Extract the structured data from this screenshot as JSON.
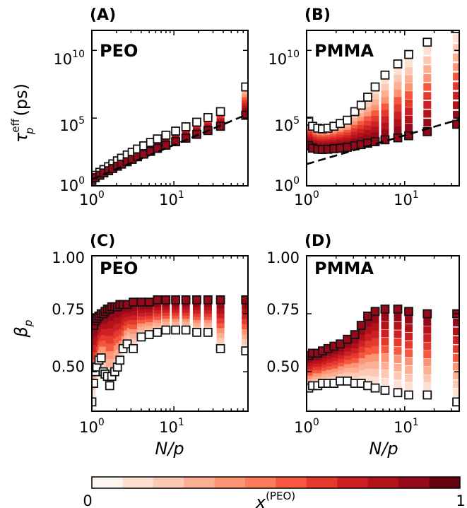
{
  "chart_data": [
    {
      "panel": "A",
      "material": "PEO",
      "type": "scatter",
      "xlabel": "",
      "ylabel": "τ_p^eff (ps)",
      "ylabel_symbol": "τ",
      "ylabel_sub": "p",
      "ylabel_sup": "eff",
      "ylabel_unit": "(ps)",
      "xscale": "log",
      "yscale": "log",
      "xlim": [
        1,
        80
      ],
      "ylim": [
        1,
        300000000000
      ],
      "xticks": [
        {
          "value": 1,
          "base": "10",
          "exp": "0"
        },
        {
          "value": 10,
          "base": "10",
          "exp": "1"
        }
      ],
      "yticks": [
        {
          "value": 1,
          "base": "10",
          "exp": "0"
        },
        {
          "value": 100000,
          "base": "10",
          "exp": "5"
        },
        {
          "value": 10000000000,
          "base": "10",
          "exp": "10"
        }
      ],
      "series": [
        {
          "name": "x(PEO)=0",
          "x_peo": 0,
          "x": [
            1.0,
            1.1,
            1.25,
            1.4,
            1.6,
            1.8,
            2.05,
            2.3,
            2.7,
            3.1,
            3.6,
            4.3,
            5.2,
            6.3,
            8,
            10.5,
            14,
            19,
            26,
            37,
            75
          ],
          "y": [
            3,
            6,
            10,
            16,
            26,
            42,
            70,
            110,
            190,
            300,
            520,
            900,
            1600,
            2900,
            5500,
            11000,
            23000,
            50000,
            110000,
            300000,
            20000000
          ]
        },
        {
          "name": "x(PEO)=1",
          "x_peo": 1,
          "x": [
            1.0,
            1.1,
            1.25,
            1.4,
            1.6,
            1.8,
            2.05,
            2.3,
            2.7,
            3.1,
            3.6,
            4.3,
            5.2,
            6.3,
            8,
            10.5,
            14,
            19,
            26,
            37,
            75
          ],
          "y": [
            2.5,
            4,
            6,
            9,
            13,
            19,
            28,
            40,
            60,
            90,
            140,
            220,
            350,
            580,
            1000,
            1800,
            3300,
            6300,
            12000,
            25000,
            160000
          ]
        }
      ],
      "reference_line": {
        "style": "dashed",
        "x": [
          1,
          80
        ],
        "y": [
          3,
          200000
        ]
      }
    },
    {
      "panel": "B",
      "material": "PMMA",
      "type": "scatter",
      "xlabel": "",
      "ylabel": "",
      "xscale": "log",
      "yscale": "log",
      "xlim": [
        1,
        36
      ],
      "ylim": [
        1,
        300000000000
      ],
      "xticks": [
        {
          "value": 1,
          "base": "10",
          "exp": "0"
        },
        {
          "value": 10,
          "base": "10",
          "exp": "1"
        }
      ],
      "yticks": [
        {
          "value": 1,
          "base": "10",
          "exp": "0"
        },
        {
          "value": 100000,
          "base": "10",
          "exp": "5"
        },
        {
          "value": 10000000000,
          "base": "10",
          "exp": "10"
        }
      ],
      "series": [
        {
          "name": "x(PEO)=0",
          "x_peo": 0,
          "x": [
            1.05,
            1.15,
            1.3,
            1.45,
            1.65,
            1.9,
            2.2,
            2.6,
            3.1,
            3.6,
            4.2,
            5,
            6.3,
            8.5,
            11,
            17,
            34
          ],
          "y": [
            60000,
            25000,
            18000,
            16000,
            18000,
            25000,
            40000,
            70000,
            300000,
            900000,
            3500000,
            20000000,
            150000000,
            1000000000,
            5000000000,
            40000000000,
            400000000000
          ]
        },
        {
          "name": "x(PEO)=1",
          "x_peo": 1,
          "x": [
            1.05,
            1.15,
            1.3,
            1.45,
            1.65,
            1.9,
            2.2,
            2.6,
            3.1,
            3.6,
            4.2,
            5,
            6.3,
            8.5,
            11,
            17,
            34
          ],
          "y": [
            900,
            600,
            500,
            480,
            500,
            550,
            600,
            700,
            900,
            1100,
            1400,
            1800,
            2500,
            3500,
            5000,
            10000,
            35000
          ]
        }
      ],
      "reference_line": {
        "style": "dashed",
        "x": [
          1,
          36
        ],
        "y": [
          40,
          80000
        ]
      }
    },
    {
      "panel": "C",
      "material": "PEO",
      "type": "scatter",
      "xlabel": "N/p",
      "ylabel": "β_p",
      "ylabel_symbol": "β",
      "ylabel_sub": "p",
      "xscale": "log",
      "yscale": "linear",
      "xlim": [
        1,
        80
      ],
      "ylim": [
        0.33,
        1.0
      ],
      "xticks": [
        {
          "value": 1,
          "base": "10",
          "exp": "0"
        },
        {
          "value": 10,
          "base": "10",
          "exp": "1"
        }
      ],
      "yticks": [
        {
          "value": 0.5,
          "label": "0.50"
        },
        {
          "value": 0.75,
          "label": "0.75"
        },
        {
          "value": 1.0,
          "label": "1.00"
        }
      ],
      "series": [
        {
          "name": "x(PEO)=0",
          "x_peo": 0,
          "x": [
            1.0,
            1.05,
            1.1,
            1.15,
            1.22,
            1.3,
            1.38,
            1.45,
            1.55,
            1.65,
            1.75,
            1.9,
            2.05,
            2.2,
            2.4,
            2.7,
            3.2,
            4,
            5,
            6.3,
            8,
            10.5,
            14,
            19,
            26,
            37,
            75
          ],
          "y": [
            0.37,
            0.45,
            0.5,
            0.52,
            0.55,
            0.56,
            0.5,
            0.49,
            0.48,
            0.44,
            0.48,
            0.5,
            0.52,
            0.55,
            0.6,
            0.62,
            0.6,
            0.65,
            0.66,
            0.67,
            0.68,
            0.68,
            0.68,
            0.67,
            0.67,
            0.6,
            0.59
          ]
        },
        {
          "name": "x(PEO)=1",
          "x_peo": 1,
          "x": [
            1.0,
            1.05,
            1.1,
            1.15,
            1.22,
            1.3,
            1.38,
            1.45,
            1.55,
            1.65,
            1.75,
            1.9,
            2.05,
            2.2,
            2.4,
            2.7,
            3.2,
            4,
            5,
            6.3,
            8,
            10.5,
            14,
            19,
            26,
            37,
            75
          ],
          "y": [
            0.7,
            0.7,
            0.72,
            0.73,
            0.74,
            0.75,
            0.75,
            0.76,
            0.77,
            0.77,
            0.78,
            0.78,
            0.78,
            0.79,
            0.79,
            0.79,
            0.8,
            0.8,
            0.8,
            0.81,
            0.81,
            0.81,
            0.81,
            0.81,
            0.81,
            0.81,
            0.81
          ]
        }
      ]
    },
    {
      "panel": "D",
      "material": "PMMA",
      "type": "scatter",
      "xlabel": "N/p",
      "ylabel": "",
      "xscale": "log",
      "yscale": "linear",
      "xlim": [
        1,
        36
      ],
      "ylim": [
        0.33,
        1.0
      ],
      "xticks": [
        {
          "value": 1,
          "base": "10",
          "exp": "0"
        },
        {
          "value": 10,
          "base": "10",
          "exp": "1"
        }
      ],
      "yticks": [
        {
          "value": 0.5,
          "label": "0.50"
        },
        {
          "value": 0.75,
          "label": "0.75"
        },
        {
          "value": 1.0,
          "label": "1.00"
        }
      ],
      "series": [
        {
          "name": "x(PEO)=0",
          "x_peo": 0,
          "x": [
            1.05,
            1.15,
            1.3,
            1.45,
            1.65,
            1.9,
            2.2,
            2.6,
            3.1,
            3.6,
            4.2,
            5,
            6.3,
            8.5,
            11,
            17,
            34
          ],
          "y": [
            0.43,
            0.44,
            0.44,
            0.45,
            0.45,
            0.45,
            0.46,
            0.46,
            0.45,
            0.45,
            0.44,
            0.43,
            0.42,
            0.41,
            0.4,
            0.4,
            0.37
          ]
        },
        {
          "name": "x(PEO)=1",
          "x_peo": 1,
          "x": [
            1.05,
            1.15,
            1.3,
            1.45,
            1.65,
            1.9,
            2.2,
            2.6,
            3.1,
            3.6,
            4.2,
            5,
            6.3,
            8.5,
            11,
            17,
            34
          ],
          "y": [
            0.57,
            0.58,
            0.58,
            0.59,
            0.6,
            0.61,
            0.62,
            0.64,
            0.66,
            0.7,
            0.74,
            0.76,
            0.77,
            0.77,
            0.76,
            0.75,
            0.75
          ]
        }
      ]
    }
  ],
  "colorbar": {
    "label_base": "x",
    "label_sup": "(PEO)",
    "min_label": "0",
    "max_label": "1",
    "colors": [
      "#fff5f0",
      "#fee0d2",
      "#fdc9b4",
      "#fcaf93",
      "#fc9576",
      "#fb7b5b",
      "#f5573f",
      "#e43a2d",
      "#cc2026",
      "#b31218",
      "#96091a",
      "#67000d"
    ]
  }
}
